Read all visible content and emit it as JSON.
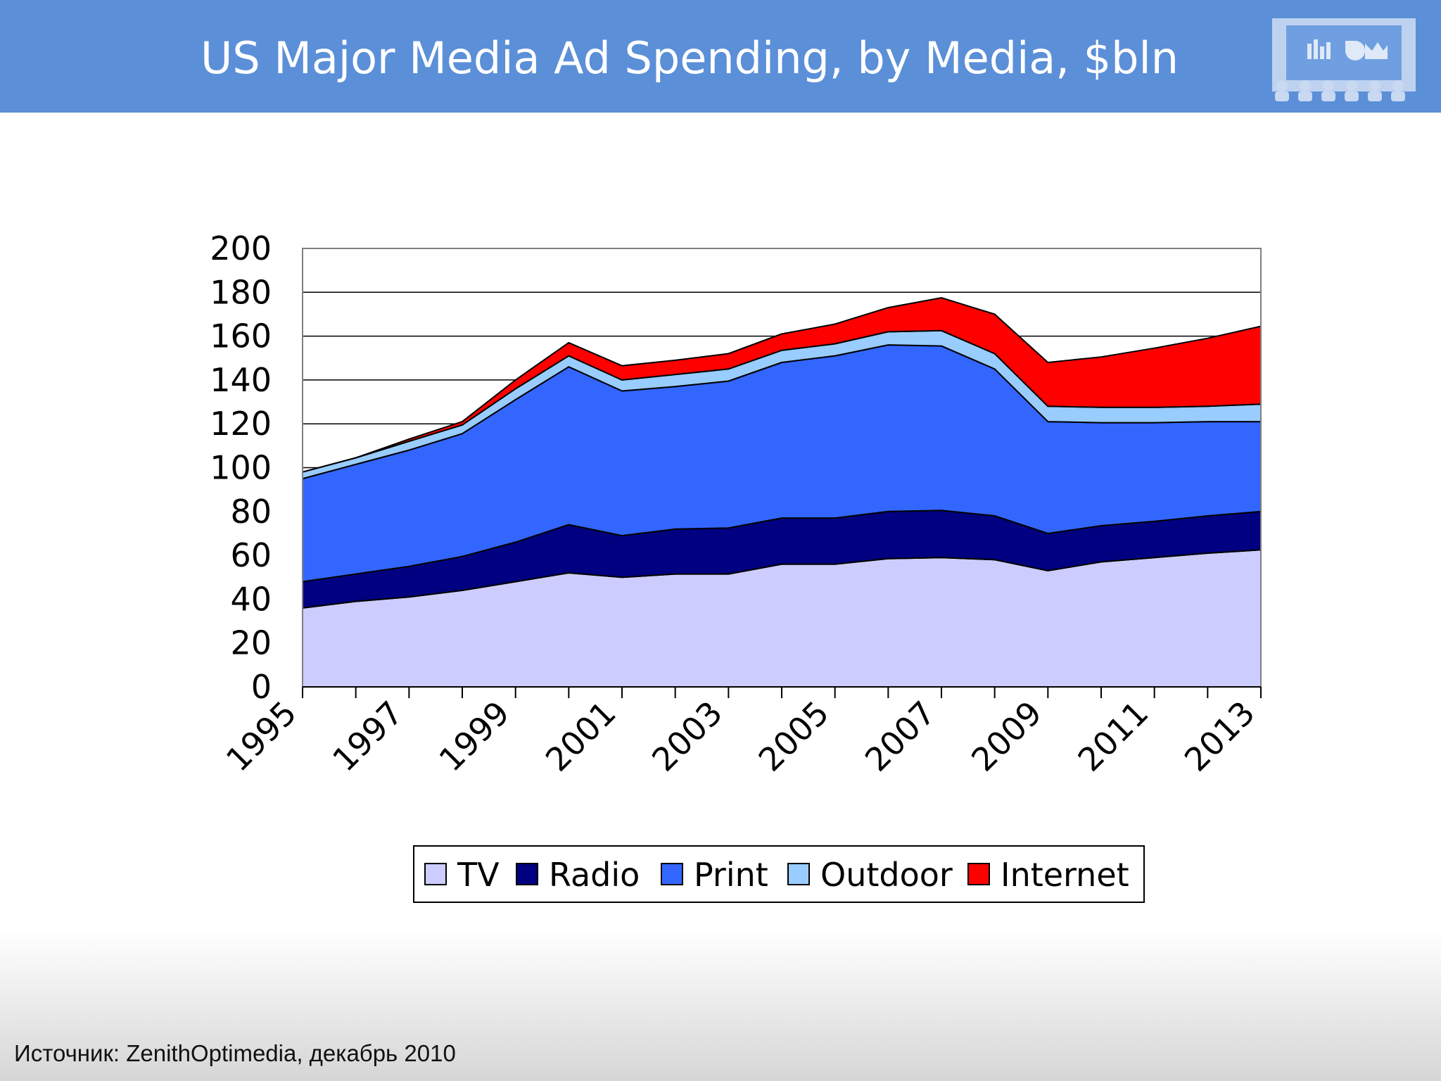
{
  "slide": {
    "title": "US Major Media Ad Spending, by Media, $bln",
    "source": "Источник: ZenithOptimedia, декабрь 2010"
  },
  "colors": {
    "header_bg": "#5b8fd8",
    "tv": "#ccccff",
    "radio": "#000080",
    "print": "#3366ff",
    "outdoor": "#99ccff",
    "internet": "#ff0000"
  },
  "chart_data": {
    "type": "area",
    "stacked": true,
    "title": "",
    "xlabel": "",
    "ylabel": "",
    "ylim": [
      0,
      200
    ],
    "yticks": [
      0,
      20,
      40,
      60,
      80,
      100,
      120,
      140,
      160,
      180,
      200
    ],
    "x": [
      1995,
      1996,
      1997,
      1998,
      1999,
      2000,
      2001,
      2002,
      2003,
      2004,
      2005,
      2006,
      2007,
      2008,
      2009,
      2010,
      2011,
      2012,
      2013
    ],
    "xticklabels": [
      "1995",
      "1997",
      "1999",
      "2001",
      "2003",
      "2005",
      "2007",
      "2009",
      "2011",
      "2013"
    ],
    "grid": "horizontal",
    "legend": "bottom",
    "series": [
      {
        "name": "TV",
        "color": "#ccccff",
        "values": [
          36,
          39,
          41,
          44,
          48,
          52,
          50,
          51.5,
          51.5,
          56,
          56,
          58.5,
          59,
          58,
          53,
          57,
          59,
          61,
          62.5
        ]
      },
      {
        "name": "Radio",
        "color": "#000080",
        "values": [
          12,
          12.5,
          14,
          15.5,
          18,
          22,
          19,
          20.5,
          21,
          21,
          21,
          21.5,
          21.5,
          20,
          17,
          16.5,
          16.5,
          17,
          17.5
        ]
      },
      {
        "name": "Print",
        "color": "#3366ff",
        "values": [
          47,
          50,
          53,
          56,
          65,
          72,
          66,
          65,
          67,
          71,
          74,
          76,
          75,
          67,
          51,
          47,
          45,
          43,
          41
        ]
      },
      {
        "name": "Outdoor",
        "color": "#99ccff",
        "values": [
          3,
          3,
          4,
          4,
          5,
          5,
          5,
          5.5,
          5.5,
          5.5,
          5.5,
          6,
          7,
          7,
          7,
          7,
          7,
          7,
          8
        ]
      },
      {
        "name": "Internet",
        "color": "#ff0000",
        "values": [
          0,
          0,
          1,
          1.5,
          4,
          6,
          6.5,
          6.5,
          7,
          7.5,
          9,
          11,
          15,
          18,
          20,
          23,
          27,
          31,
          35.5
        ]
      }
    ]
  }
}
